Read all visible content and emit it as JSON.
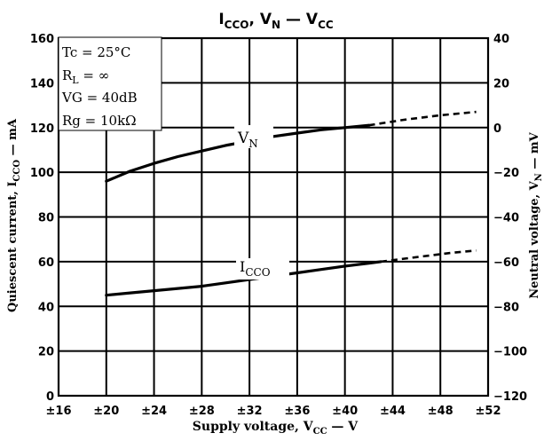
{
  "chart_data": {
    "type": "line",
    "title": {
      "text": "I",
      "sub": "CCO",
      "rest": ", V",
      "sub2": "N",
      "dash": " — V",
      "sub3": "CC"
    },
    "xlabel": {
      "text": "Supply voltage, V",
      "sub": "CC",
      "unit": " — V"
    },
    "ylabel_left": {
      "text": "Quiescent current, I",
      "sub": "CCO",
      "unit": " — mA"
    },
    "ylabel_right": {
      "text": "Neutral voltage, V",
      "sub": "N",
      "unit": " — mV"
    },
    "x_range": [
      16,
      52
    ],
    "x_ticks": [
      "±16",
      "±20",
      "±24",
      "±28",
      "±32",
      "±36",
      "±40",
      "±44",
      "±48",
      "±52"
    ],
    "y_left_range": [
      0,
      160
    ],
    "y_left_ticks": [
      "0",
      "20",
      "40",
      "60",
      "80",
      "100",
      "120",
      "140",
      "160"
    ],
    "y_right_range": [
      -120,
      40
    ],
    "y_right_ticks": [
      "−120",
      "−100",
      "−80",
      "−60",
      "−40",
      "−20",
      "0",
      "20",
      "40"
    ],
    "grid": true,
    "conditions": [
      {
        "text": "Tc = 25°C"
      },
      {
        "text": "R",
        "sub": "L",
        "rest": " = ∞"
      },
      {
        "text": "VG = 40dB"
      },
      {
        "text": "Rg = 10kΩ"
      }
    ],
    "series": [
      {
        "name": "I",
        "name_sub": "CCO",
        "axis": "left",
        "solid": {
          "x": [
            20,
            22,
            24,
            26,
            28,
            30,
            32,
            34,
            36,
            38,
            40,
            42,
            43
          ],
          "y": [
            45,
            46,
            47,
            48,
            49,
            50.5,
            52,
            53.5,
            55,
            56.5,
            58,
            59.3,
            60
          ]
        },
        "dashed": {
          "x": [
            43,
            46,
            49,
            51
          ],
          "y": [
            60,
            62,
            64,
            65
          ]
        }
      },
      {
        "name": "V",
        "name_sub": "N",
        "axis": "right",
        "solid": {
          "x": [
            20,
            22,
            24,
            26,
            28,
            30,
            32,
            34,
            36,
            38,
            40,
            42
          ],
          "y": [
            -24,
            -19.5,
            -16,
            -13,
            -10.5,
            -8,
            -6,
            -4,
            -2.5,
            -1,
            0,
            1
          ]
        },
        "dashed": {
          "x": [
            42,
            45,
            48,
            51
          ],
          "y": [
            1,
            3.5,
            5.5,
            7
          ]
        }
      }
    ]
  }
}
